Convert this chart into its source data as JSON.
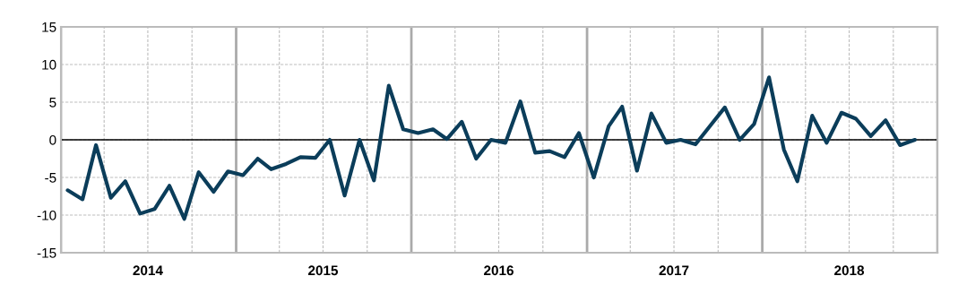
{
  "chart_data": {
    "type": "line",
    "color": "#0b3d5a",
    "grid": true,
    "marker": "none",
    "line_style": "solid",
    "x": [
      "2014-01-15",
      "2014-02-15",
      "2014-03-15",
      "2014-04-15",
      "2014-05-15",
      "2014-06-15",
      "2014-07-15",
      "2014-08-15",
      "2014-09-15",
      "2014-10-15",
      "2014-11-15",
      "2014-12-15",
      "2015-01-15",
      "2015-02-15",
      "2015-03-15",
      "2015-04-15",
      "2015-05-15",
      "2015-06-15",
      "2015-07-15",
      "2015-08-15",
      "2015-09-15",
      "2015-10-15",
      "2015-11-15",
      "2015-12-15",
      "2016-01-15",
      "2016-02-15",
      "2016-03-15",
      "2016-04-15",
      "2016-05-15",
      "2016-06-15",
      "2016-07-15",
      "2016-08-15",
      "2016-09-15",
      "2016-10-15",
      "2016-11-15",
      "2016-12-15",
      "2017-01-15",
      "2017-02-15",
      "2017-03-15",
      "2017-04-15",
      "2017-05-15",
      "2017-06-15",
      "2017-07-15",
      "2017-08-15",
      "2017-09-15",
      "2017-10-15",
      "2017-11-15",
      "2017-12-15",
      "2018-01-15",
      "2018-02-15",
      "2018-03-15",
      "2018-04-15",
      "2018-05-15",
      "2018-06-15",
      "2018-07-15",
      "2018-08-15",
      "2018-09-15",
      "2018-10-15",
      "2018-11-15"
    ],
    "values": [
      -6.7,
      -7.9,
      -0.7,
      -7.7,
      -5.5,
      -9.8,
      -9.2,
      -6.1,
      -10.5,
      -4.3,
      -6.9,
      -4.2,
      -4.7,
      -2.5,
      -3.9,
      -3.2,
      -2.3,
      -2.4,
      0,
      -7.4,
      0,
      -5.4,
      7.2,
      1.4,
      0.9,
      1.4,
      0.1,
      2.4,
      -2.5,
      0,
      -0.4,
      5.1,
      -1.7,
      -1.5,
      -2.3,
      0.9,
      -5.0,
      1.8,
      4.4,
      -4.1,
      3.5,
      -0.4,
      0,
      -0.6,
      1.9,
      4.3,
      0,
      2.1,
      8.3,
      -1.3,
      -5.5,
      3.2,
      -0.4,
      3.6,
      2.8,
      0.5,
      2.6,
      -0.7,
      0
    ],
    "xlim": [
      "2014-01-01",
      "2019-01-01"
    ],
    "xticks": [
      {
        "value": "2014-01-01",
        "label": null
      },
      {
        "value": "2014-04-01",
        "label": null
      },
      {
        "value": "2014-07-01",
        "label": "2014"
      },
      {
        "value": "2014-10-01",
        "label": null
      },
      {
        "value": "2015-01-01",
        "label": null
      },
      {
        "value": "2015-04-01",
        "label": null
      },
      {
        "value": "2015-07-01",
        "label": "2015"
      },
      {
        "value": "2015-10-01",
        "label": null
      },
      {
        "value": "2016-01-01",
        "label": null
      },
      {
        "value": "2016-04-01",
        "label": null
      },
      {
        "value": "2016-07-01",
        "label": "2016"
      },
      {
        "value": "2016-10-01",
        "label": null
      },
      {
        "value": "2017-01-01",
        "label": null
      },
      {
        "value": "2017-04-01",
        "label": null
      },
      {
        "value": "2017-07-01",
        "label": "2017"
      },
      {
        "value": "2017-10-01",
        "label": null
      },
      {
        "value": "2018-01-01",
        "label": null
      },
      {
        "value": "2018-04-01",
        "label": null
      },
      {
        "value": "2018-07-01",
        "label": "2018"
      },
      {
        "value": "2018-10-01",
        "label": null
      },
      {
        "value": "2019-01-01",
        "label": null
      }
    ],
    "ylim": [
      -15,
      15
    ],
    "yticks": [
      -15,
      -10,
      -5,
      0,
      5,
      10,
      15
    ],
    "ref_lines": [
      {
        "axis": "y",
        "value": 0,
        "color": "#000000",
        "line_style": "solid"
      }
    ]
  }
}
